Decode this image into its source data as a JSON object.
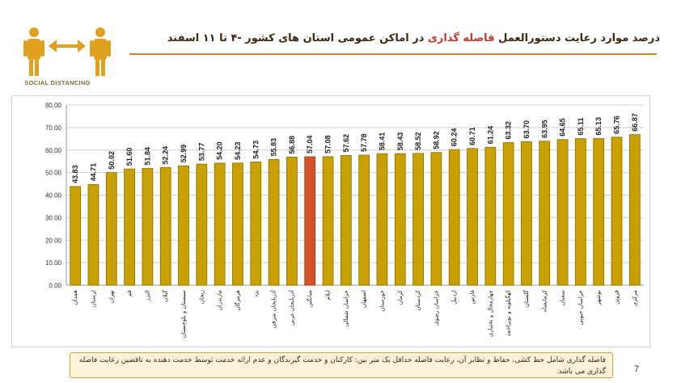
{
  "logo": {
    "caption": "SOCIAL DISTANCING"
  },
  "title": {
    "part1": "درصد موارد رعایت دستورالعمل ",
    "highlight": "فاصله گذاری",
    "part2": " در اماکن عمومی استان های کشور -۴ تا ۱۱ اسفند"
  },
  "colors": {
    "bar": "#c8a000",
    "bar_edge": "#8a6d00",
    "highlight_bar": "#d4532a",
    "highlight_edge": "#9a3212"
  },
  "chart_data": {
    "type": "bar",
    "ylim": [
      0,
      80
    ],
    "y_ticks": [
      "0.00",
      "10.00",
      "20.00",
      "30.00",
      "40.00",
      "50.00",
      "60.00",
      "70.00",
      "80.00"
    ],
    "grid": true,
    "categories": [
      "همدان",
      "لرستان",
      "تهران",
      "قم",
      "البرز",
      "گیلان",
      "سیستان و بلوچستان",
      "زنجان",
      "مازندران",
      "هرمزگان",
      "یزد",
      "آذربایجان شرقی",
      "آذربایجان غربی",
      "میانگین",
      "ایلام",
      "خراسان شمالی",
      "اصفهان",
      "خوزستان",
      "کرمان",
      "کردستان",
      "خراسان رضوی",
      "اردبیل",
      "فارس",
      "چهارمحال و بختیاری",
      "کهگیلویه و بویراحمد",
      "گلستان",
      "کرمانشاه",
      "سمنان",
      "خراسان جنوبی",
      "بوشهر",
      "قزوین",
      "مرکزی"
    ],
    "values": [
      43.83,
      44.71,
      50.02,
      51.6,
      51.84,
      52.24,
      52.99,
      53.77,
      54.2,
      54.23,
      54.73,
      55.83,
      56.88,
      57.04,
      57.08,
      57.62,
      57.78,
      58.41,
      58.43,
      58.52,
      58.92,
      60.24,
      60.71,
      61.24,
      63.32,
      63.7,
      63.95,
      64.65,
      65.11,
      65.13,
      65.76,
      66.87
    ],
    "value_labels": [
      "43.83",
      "44.71",
      "50.02",
      "51.60",
      "51.84",
      "52.24",
      "52.99",
      "53.77",
      "54.20",
      "54.23",
      "54.73",
      "55.83",
      "56.88",
      "57.04",
      "57.08",
      "57.62",
      "57.78",
      "58.41",
      "58.43",
      "58.52",
      "58.92",
      "60.24",
      "60.71",
      "61.24",
      "63.32",
      "63.70",
      "63.95",
      "64.65",
      "65.11",
      "65.13",
      "65.76",
      "66.87"
    ],
    "highlight_index": 13
  },
  "footnote": "فاصله گذاری شامل خط کشی، حفاظ و نظایر آن، رعایت فاصله حداقل یک متر بین: کارکنان  و خدمت گیرندگان و عدم ارائه خدمت توسط خدمت دهنده به ناقضین رعایت فاصله گذاری می باشد.",
  "page_number": "7"
}
